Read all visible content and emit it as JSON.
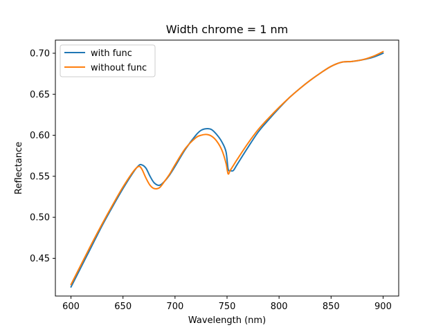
{
  "chart_data": {
    "type": "line",
    "title": "Width chrome = 1 nm",
    "xlabel": "Wavelength (nm)",
    "ylabel": "Reflectance",
    "xlim": [
      585,
      915
    ],
    "ylim": [
      0.404,
      0.716
    ],
    "xticks": [
      600,
      650,
      700,
      750,
      800,
      850,
      900
    ],
    "yticks": [
      0.45,
      0.5,
      0.55,
      0.6,
      0.65,
      0.7
    ],
    "ytick_labels": [
      "0.45",
      "0.50",
      "0.55",
      "0.60",
      "0.65",
      "0.70"
    ],
    "grid": false,
    "legend_position": "top-left",
    "series": [
      {
        "name": "with func",
        "color": "#1f77b4",
        "x": [
          600,
          610,
          620,
          630,
          640,
          650,
          660,
          665,
          668,
          672,
          676,
          680,
          685,
          690,
          695,
          700,
          710,
          720,
          725,
          730,
          735,
          740,
          745,
          749,
          751,
          753,
          756,
          760,
          770,
          780,
          790,
          800,
          810,
          820,
          830,
          840,
          850,
          860,
          870,
          880,
          890,
          900
        ],
        "y": [
          0.415,
          0.44,
          0.465,
          0.49,
          0.513,
          0.535,
          0.555,
          0.563,
          0.564,
          0.56,
          0.55,
          0.542,
          0.539,
          0.544,
          0.552,
          0.562,
          0.583,
          0.6,
          0.606,
          0.608,
          0.607,
          0.601,
          0.592,
          0.58,
          0.559,
          0.557,
          0.557,
          0.565,
          0.585,
          0.604,
          0.619,
          0.633,
          0.646,
          0.657,
          0.667,
          0.676,
          0.684,
          0.689,
          0.69,
          0.692,
          0.695,
          0.7
        ]
      },
      {
        "name": "without func",
        "color": "#ff7f0e",
        "x": [
          600,
          610,
          620,
          630,
          640,
          650,
          660,
          665,
          668,
          672,
          676,
          680,
          685,
          690,
          695,
          700,
          710,
          720,
          725,
          730,
          735,
          740,
          745,
          749,
          751,
          753,
          756,
          760,
          770,
          780,
          790,
          800,
          810,
          820,
          830,
          840,
          850,
          860,
          870,
          880,
          890,
          900
        ],
        "y": [
          0.418,
          0.443,
          0.468,
          0.492,
          0.515,
          0.537,
          0.556,
          0.562,
          0.559,
          0.548,
          0.539,
          0.535,
          0.536,
          0.544,
          0.553,
          0.564,
          0.584,
          0.597,
          0.6,
          0.601,
          0.599,
          0.593,
          0.582,
          0.566,
          0.553,
          0.557,
          0.563,
          0.571,
          0.59,
          0.607,
          0.621,
          0.634,
          0.646,
          0.657,
          0.667,
          0.676,
          0.684,
          0.689,
          0.69,
          0.692,
          0.696,
          0.702
        ]
      }
    ]
  }
}
